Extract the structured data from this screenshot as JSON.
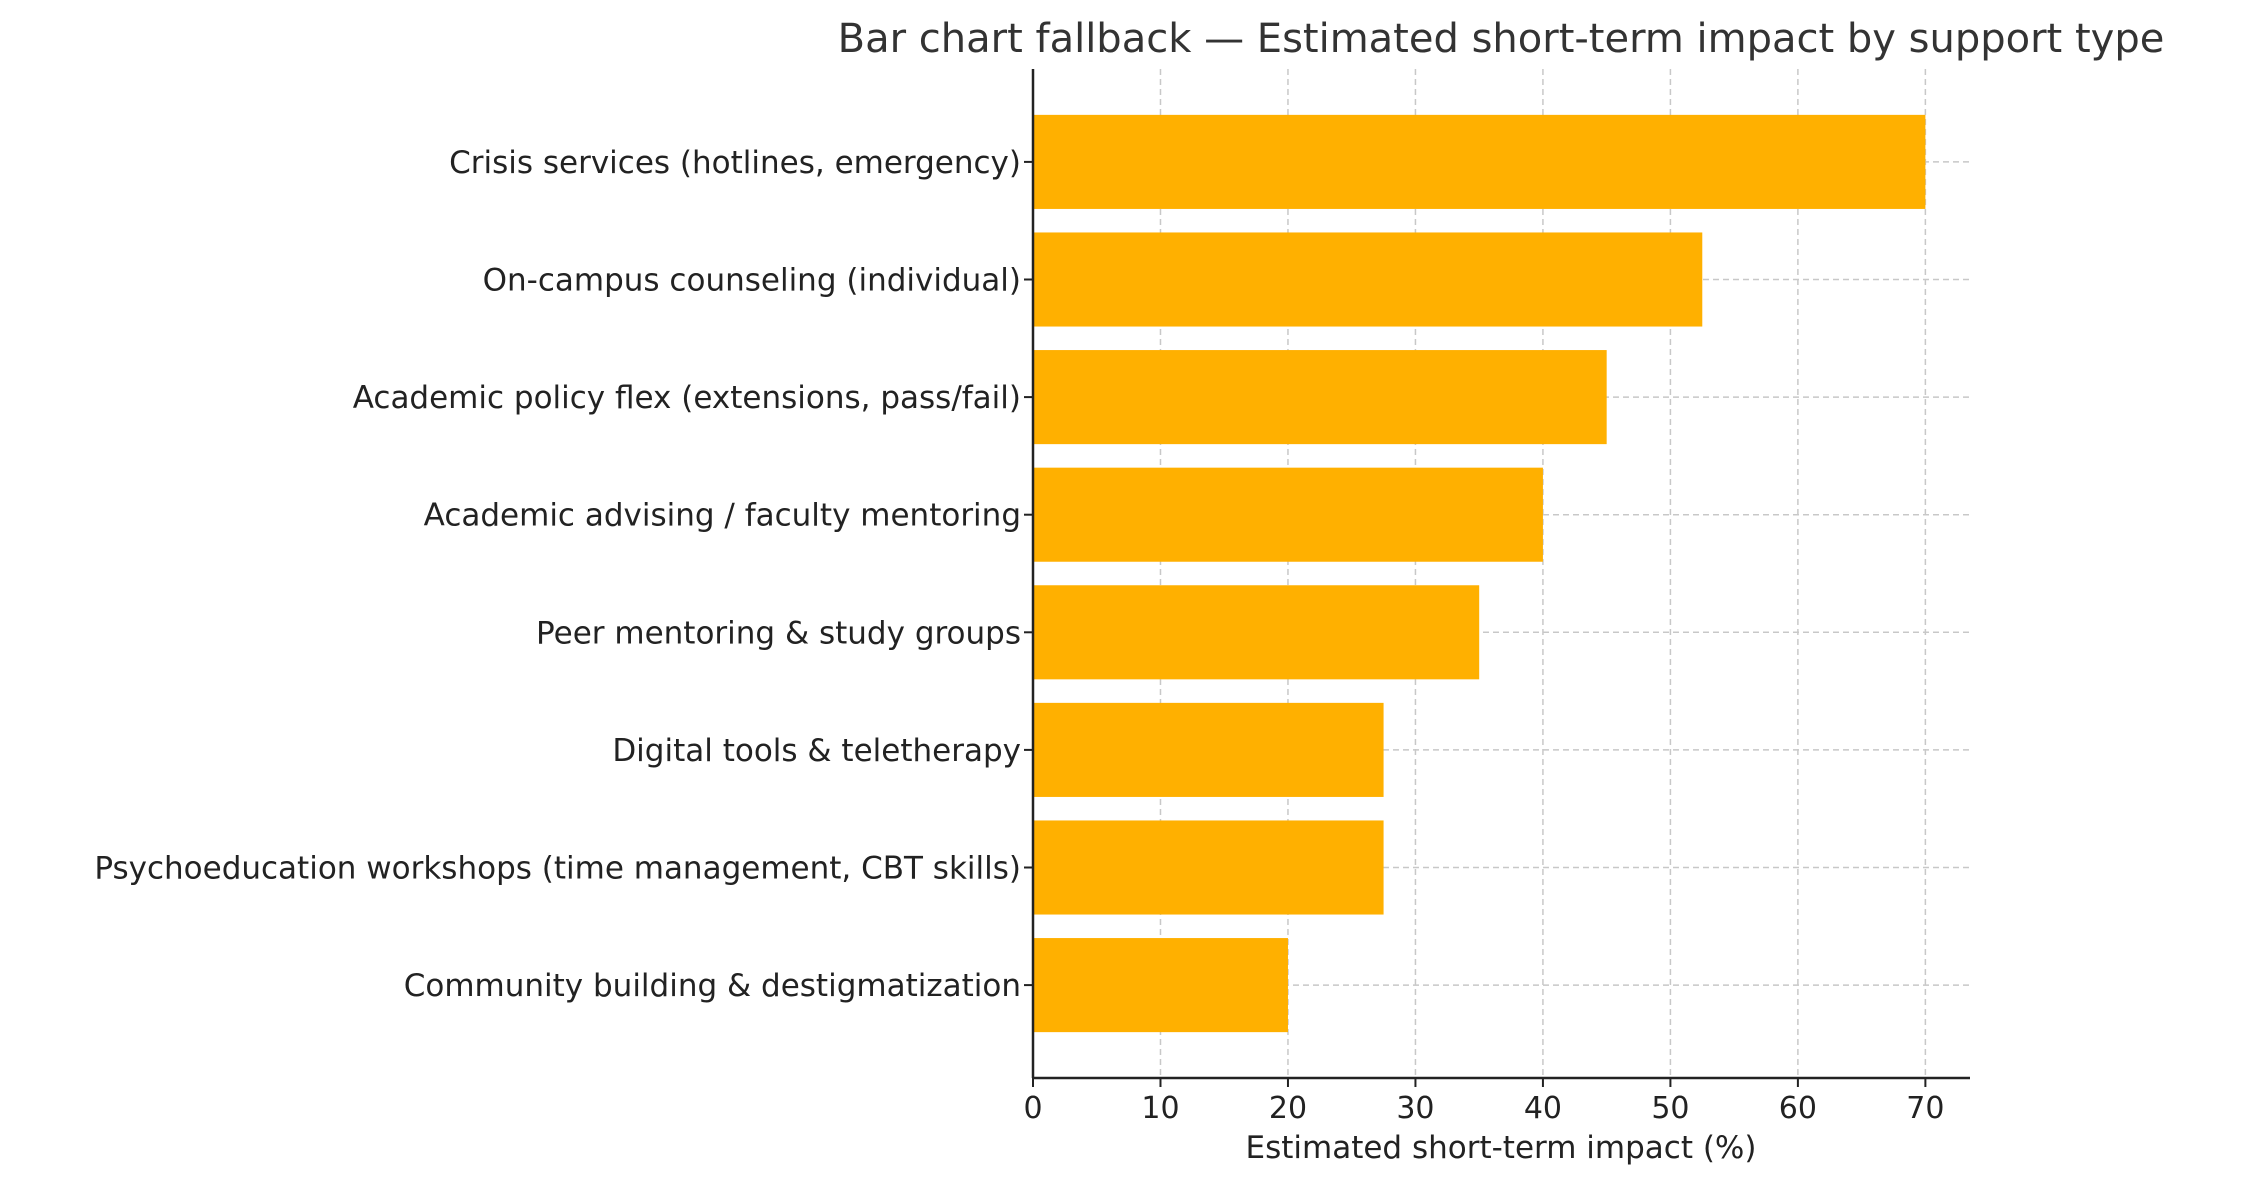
{
  "chart_data": {
    "type": "bar",
    "orientation": "horizontal",
    "title": "Bar chart fallback — Estimated short-term impact by support type",
    "xlabel": "Estimated short-term impact (%)",
    "ylabel": "",
    "categories": [
      "Crisis services (hotlines, emergency)",
      "On-campus counseling (individual)",
      "Academic policy flex (extensions, pass/fail)",
      "Academic advising / faculty mentoring",
      "Peer mentoring & study groups",
      "Digital tools & teletherapy",
      "Psychoeducation workshops (time management, CBT skills)",
      "Community building & destigmatization"
    ],
    "values": [
      70,
      52.5,
      45,
      40,
      35,
      27.5,
      27.5,
      20
    ],
    "xlim": [
      0,
      73.5
    ],
    "xticks": [
      "0",
      "10",
      "20",
      "30",
      "40",
      "50",
      "60",
      "70"
    ],
    "grid": true,
    "bar_color": "#FFB000"
  }
}
